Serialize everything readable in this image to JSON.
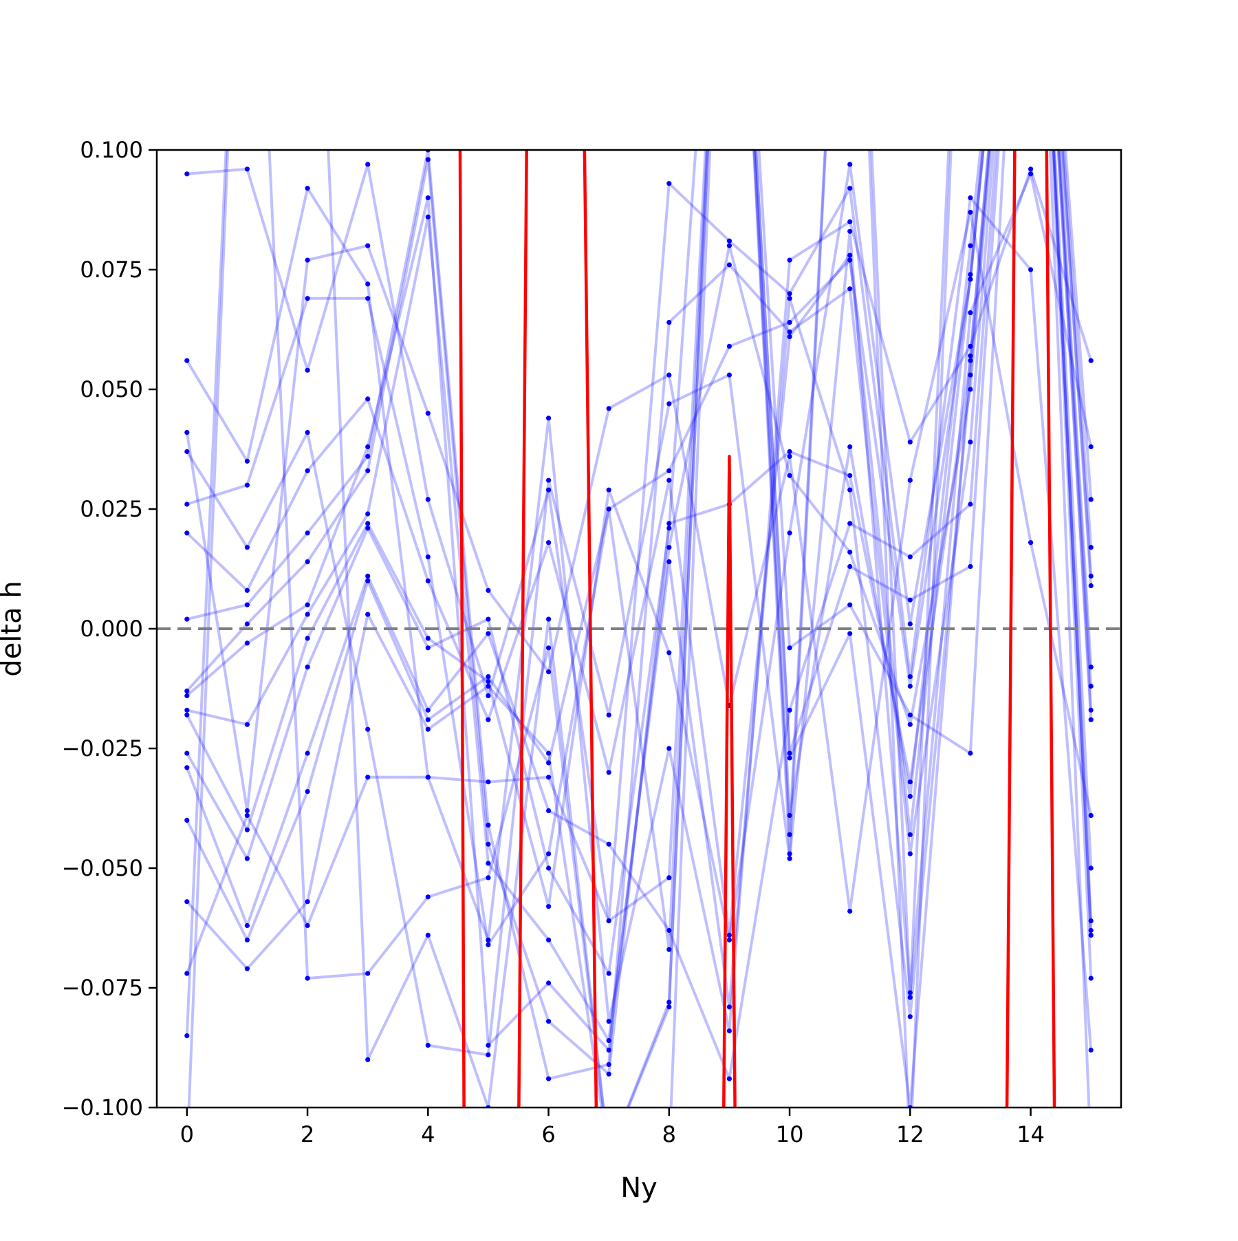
{
  "chart_data": {
    "type": "line",
    "title": "",
    "xlabel": "Ny",
    "ylabel": "delta h",
    "xlim": [
      -0.5,
      15.5
    ],
    "ylim": [
      -0.1,
      0.1
    ],
    "x_ticks": [
      0,
      2,
      4,
      6,
      8,
      10,
      12,
      14
    ],
    "x_tick_labels": [
      "0",
      "2",
      "4",
      "6",
      "8",
      "10",
      "12",
      "14"
    ],
    "y_ticks": [
      -0.1,
      -0.075,
      -0.05,
      -0.025,
      0,
      0.025,
      0.05,
      0.075,
      0.1
    ],
    "y_tick_labels": [
      "−0.100",
      "−0.075",
      "−0.050",
      "−0.025",
      "0.000",
      "0.025",
      "0.050",
      "0.075",
      "0.100"
    ],
    "grid": false,
    "legend": "none",
    "reference_line": {
      "y": 0,
      "style": "dashed",
      "color": "#808080"
    },
    "colors": {
      "samples": "#0000ff",
      "mean": "#ff0000"
    },
    "mean": {
      "x": [
        4.5,
        4.6,
        5.5,
        5.7,
        6.5,
        6.8,
        8.9,
        9.0,
        9.1,
        13.6,
        13.8,
        14.2,
        14.4
      ],
      "y": [
        0.2,
        -0.11,
        -0.11,
        0.2,
        0.2,
        -0.11,
        -0.11,
        0.036,
        -0.11,
        -0.11,
        0.2,
        0.2,
        -0.11
      ]
    },
    "samples": [
      {
        "x": [
          0,
          1,
          2,
          3,
          4,
          5,
          6,
          7,
          8,
          9,
          10,
          11,
          12,
          13,
          14,
          15
        ],
        "y": [
          0.095,
          0.096,
          0.054,
          0.097,
          0.027,
          -0.014,
          0.029,
          -0.061,
          0.093,
          0.081,
          0.07,
          0.092,
          -0.01,
          0.09,
          0.075,
          -0.088
        ]
      },
      {
        "x": [
          0,
          1,
          2,
          3,
          4,
          5,
          6,
          7,
          8,
          9,
          10,
          11,
          12,
          13,
          14,
          15
        ],
        "y": [
          0.056,
          0.035,
          0.092,
          0.072,
          -0.031,
          -0.065,
          0.044,
          -0.082,
          -0.025,
          -0.084,
          0.077,
          0.085,
          0.039,
          0.059,
          0.096,
          0.056
        ]
      },
      {
        "x": [
          0,
          1,
          2,
          3,
          4,
          5,
          6,
          7,
          8,
          9,
          10,
          11,
          12,
          13,
          14,
          15
        ],
        "y": [
          0.041,
          -0.038,
          0.077,
          0.08,
          0.045,
          0.008,
          -0.009,
          0.046,
          0.053,
          -0.016,
          0.036,
          -0.059,
          0.031,
          0.087,
          0.018,
          -0.039
        ]
      },
      {
        "x": [
          0,
          1,
          2,
          3,
          4,
          5,
          6,
          7,
          8,
          9,
          10,
          11,
          12,
          13,
          14,
          15
        ],
        "y": [
          0.037,
          0.017,
          0.041,
          -0.021,
          -0.087,
          -0.089,
          0.031,
          -0.018,
          0.047,
          0.053,
          -0.048,
          0.083,
          -0.076,
          0.066,
          0.095,
          0.038
        ]
      },
      {
        "x": [
          0,
          1,
          2,
          3,
          4,
          5,
          6,
          7,
          8,
          9,
          10,
          11,
          12,
          13,
          14,
          15
        ],
        "y": [
          0.026,
          0.03,
          0.069,
          0.069,
          0.015,
          -0.066,
          -0.047,
          0.025,
          0.033,
          0.059,
          0.064,
          0.077,
          -0.012,
          0.073,
          0.2,
          0.027
        ]
      },
      {
        "x": [
          0,
          1,
          2,
          3,
          4,
          5,
          6,
          7,
          8,
          9,
          10,
          11,
          12,
          13,
          14,
          15
        ],
        "y": [
          0.02,
          0.008,
          0.033,
          0.048,
          0.01,
          -0.019,
          0.018,
          -0.03,
          0.031,
          -0.064,
          0.061,
          0.078,
          -0.043,
          0.074,
          0.2,
          0.017
        ]
      },
      {
        "x": [
          0,
          1,
          2,
          3,
          4,
          5,
          6,
          7,
          8,
          9,
          10,
          11,
          12,
          13,
          14,
          15
        ],
        "y": [
          0.002,
          0.005,
          0.02,
          0.036,
          0.1,
          -0.041,
          -0.094,
          -0.091,
          0.064,
          0.076,
          0.062,
          0.071,
          -0.047,
          0.039,
          0.2,
          0.011
        ]
      },
      {
        "x": [
          0,
          1,
          2,
          3,
          4,
          5,
          6,
          7,
          8,
          9,
          10,
          11,
          12,
          13,
          14,
          15
        ],
        "y": [
          -0.013,
          0.001,
          0.014,
          0.033,
          0.098,
          -0.045,
          -0.082,
          -0.093,
          0.022,
          0.026,
          0.037,
          0.032,
          -0.032,
          0.056,
          0.2,
          0.009
        ]
      },
      {
        "x": [
          0,
          1,
          2,
          3,
          4,
          5,
          6,
          7,
          8,
          9,
          10,
          11,
          12,
          13,
          14,
          15
        ],
        "y": [
          -0.014,
          -0.003,
          0.005,
          0.038,
          0.09,
          -0.087,
          -0.074,
          -0.088,
          0.017,
          0.08,
          0.032,
          0.016,
          -0.02,
          0.05,
          0.2,
          -0.008
        ]
      },
      {
        "x": [
          0,
          1,
          2,
          3,
          4,
          5,
          6,
          7,
          8,
          9,
          10,
          11,
          12,
          13,
          14,
          15
        ],
        "y": [
          -0.017,
          -0.02,
          0.003,
          0.024,
          0.086,
          -0.049,
          -0.065,
          -0.086,
          0.014,
          -0.079,
          0.069,
          0.029,
          -0.081,
          0.053,
          0.2,
          -0.012
        ]
      },
      {
        "x": [
          0,
          1,
          2,
          3,
          4,
          5,
          6,
          7,
          8,
          9,
          10,
          11,
          12,
          13,
          14,
          15
        ],
        "y": [
          -0.018,
          -0.042,
          -0.002,
          0.022,
          -0.002,
          -0.011,
          -0.058,
          0.029,
          -0.005,
          -0.065,
          0.02,
          0.097,
          0.001,
          0.073,
          0.2,
          -0.017
        ]
      },
      {
        "x": [
          0,
          1,
          2,
          3,
          4,
          5,
          6,
          7,
          8,
          9,
          10,
          11,
          12,
          13,
          14,
          15
        ],
        "y": [
          -0.026,
          -0.048,
          -0.008,
          0.021,
          -0.004,
          0.002,
          -0.05,
          -0.072,
          0.021,
          0.2,
          -0.004,
          0.005,
          -0.018,
          -0.026,
          0.2,
          -0.019
        ]
      },
      {
        "x": [
          0,
          1,
          2,
          3,
          4,
          5,
          6,
          7,
          8,
          9,
          10,
          11,
          12,
          13,
          14,
          15
        ],
        "y": [
          -0.029,
          -0.062,
          -0.026,
          0.011,
          -0.017,
          -0.001,
          -0.038,
          -0.045,
          -0.063,
          -0.094,
          -0.017,
          0.022,
          0.015,
          0.026,
          0.2,
          -0.05
        ]
      },
      {
        "x": [
          0,
          1,
          2,
          3,
          4,
          5,
          6,
          7,
          8,
          9,
          10,
          11,
          12,
          13,
          14,
          15
        ],
        "y": [
          -0.04,
          -0.065,
          -0.034,
          0.01,
          -0.019,
          -0.01,
          -0.028,
          0.025,
          -0.067,
          0.2,
          -0.026,
          0.013,
          0.006,
          0.013,
          0.2,
          -0.064
        ]
      },
      {
        "x": [
          0,
          1,
          2,
          3,
          4,
          5,
          6,
          7,
          8,
          9,
          10,
          11,
          12,
          13,
          14,
          15
        ],
        "y": [
          -0.057,
          -0.071,
          -0.057,
          0.003,
          -0.021,
          -0.012,
          -0.026,
          -0.11,
          -0.079,
          0.2,
          -0.027,
          -0.001,
          -0.1,
          0.057,
          0.2,
          -0.073
        ]
      },
      {
        "x": [
          0,
          1,
          2,
          3,
          4,
          5,
          6,
          7,
          8,
          9,
          10,
          11,
          12,
          13,
          14,
          15
        ],
        "y": [
          -0.072,
          -0.039,
          -0.062,
          -0.031,
          -0.031,
          -0.032,
          -0.031,
          -0.061,
          -0.052,
          0.2,
          -0.039,
          0.038,
          -0.035,
          0.08,
          0.2,
          -0.063
        ]
      },
      {
        "x": [
          0,
          1,
          2,
          3,
          4,
          5,
          6,
          7,
          8,
          9,
          10,
          11,
          12,
          13,
          14,
          15
        ],
        "y": [
          -0.085,
          0.2,
          -0.073,
          -0.072,
          -0.056,
          -0.052,
          -0.004,
          -0.11,
          -0.078,
          0.2,
          -0.043,
          0.2,
          -0.077,
          0.2,
          0.2,
          -0.061
        ]
      },
      {
        "x": [
          0,
          1,
          2,
          3,
          4,
          5,
          6,
          7,
          8,
          9,
          10,
          11,
          12,
          13,
          14,
          15
        ],
        "y": [
          -0.11,
          0.2,
          0.2,
          -0.09,
          -0.064,
          -0.1,
          0.002,
          -0.11,
          -0.11,
          0.2,
          -0.047,
          0.2,
          -0.11,
          0.2,
          0.2,
          -0.11
        ]
      }
    ]
  }
}
